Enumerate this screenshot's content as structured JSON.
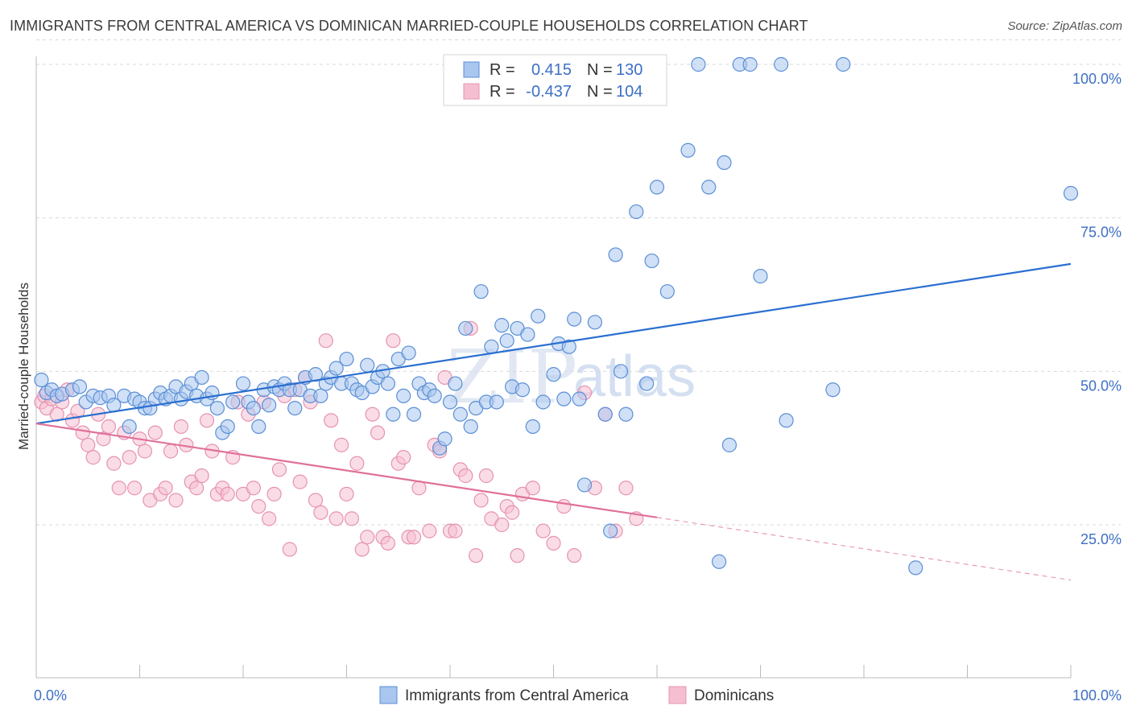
{
  "title": "IMMIGRANTS FROM CENTRAL AMERICA VS DOMINICAN MARRIED-COUPLE HOUSEHOLDS CORRELATION CHART",
  "source": "Source: ZipAtlas.com",
  "watermark": {
    "zip": "ZIP",
    "atlas": "atlas"
  },
  "colors": {
    "blue_fill": "#a9c6ef",
    "blue_stroke": "#5b8fd6",
    "blue_line": "#2a6fd0",
    "pink_fill": "#f6bfd1",
    "pink_stroke": "#e693b0",
    "pink_line": "#e0709a",
    "grid": "#d9d9d9",
    "axis_label": "#3d6fc4"
  },
  "legend": {
    "rows": [
      {
        "r_label": "R =",
        "r_value": "0.415",
        "n_label": "N =",
        "n_value": "130"
      },
      {
        "r_label": "R =",
        "r_value": "-0.437",
        "n_label": "N =",
        "n_value": "104"
      }
    ]
  },
  "chart_data": {
    "type": "scatter",
    "title": "IMMIGRANTS FROM CENTRAL AMERICA VS DOMINICAN MARRIED-COUPLE HOUSEHOLDS CORRELATION CHART",
    "xlabel": "",
    "ylabel": "Married-couple Households",
    "xlim": [
      0,
      100
    ],
    "ylim": [
      0,
      104
    ],
    "x_tick_labels": [
      "0.0%",
      "100.0%"
    ],
    "y_ticks": [
      25,
      50,
      75,
      100
    ],
    "y_tick_labels": [
      "25.0%",
      "50.0%",
      "75.0%",
      "100.0%"
    ],
    "grid": true,
    "series": [
      {
        "name": "Immigrants from Central America",
        "color": "blue",
        "r": 0.415,
        "n": 130,
        "trend": {
          "x0": 0,
          "y0": 41.5,
          "x1": 100,
          "y1": 67.5,
          "dashed_from": null
        },
        "points": [
          [
            0.5,
            48.6
          ],
          [
            1,
            46.5
          ],
          [
            1.5,
            47
          ],
          [
            2,
            46
          ],
          [
            2.5,
            46.3
          ],
          [
            3.5,
            47
          ],
          [
            4.2,
            47.5
          ],
          [
            4.8,
            45
          ],
          [
            5.5,
            46
          ],
          [
            6.2,
            45.7
          ],
          [
            7,
            46
          ],
          [
            7.5,
            44.5
          ],
          [
            8.5,
            46
          ],
          [
            9,
            41
          ],
          [
            9.5,
            45.5
          ],
          [
            10,
            45
          ],
          [
            10.5,
            44
          ],
          [
            11,
            44
          ],
          [
            11.5,
            45.5
          ],
          [
            12,
            46.5
          ],
          [
            12.5,
            45.5
          ],
          [
            13,
            46
          ],
          [
            13.5,
            47.5
          ],
          [
            14,
            45.5
          ],
          [
            14.5,
            46.7
          ],
          [
            15,
            48
          ],
          [
            15.5,
            46
          ],
          [
            16,
            49
          ],
          [
            16.5,
            45.5
          ],
          [
            17,
            46.5
          ],
          [
            17.5,
            44
          ],
          [
            18,
            40
          ],
          [
            18.5,
            41
          ],
          [
            19,
            45
          ],
          [
            20,
            48
          ],
          [
            20.5,
            45
          ],
          [
            21,
            44
          ],
          [
            21.5,
            41
          ],
          [
            22,
            47
          ],
          [
            22.5,
            44.5
          ],
          [
            23,
            47.5
          ],
          [
            23.5,
            47
          ],
          [
            24,
            48
          ],
          [
            24.5,
            47
          ],
          [
            25,
            44
          ],
          [
            25.5,
            47
          ],
          [
            26,
            49
          ],
          [
            26.5,
            46
          ],
          [
            27,
            49.5
          ],
          [
            27.5,
            46
          ],
          [
            28,
            48
          ],
          [
            28.5,
            49
          ],
          [
            29,
            50.5
          ],
          [
            29.5,
            48
          ],
          [
            30,
            52
          ],
          [
            30.5,
            48
          ],
          [
            31,
            47
          ],
          [
            31.5,
            46.5
          ],
          [
            32,
            51
          ],
          [
            32.5,
            47.5
          ],
          [
            33,
            49
          ],
          [
            33.5,
            50
          ],
          [
            34,
            48
          ],
          [
            34.5,
            43
          ],
          [
            35,
            52
          ],
          [
            35.5,
            46
          ],
          [
            36,
            53
          ],
          [
            36.5,
            43
          ],
          [
            37,
            48
          ],
          [
            37.5,
            46.5
          ],
          [
            38,
            47
          ],
          [
            38.5,
            46
          ],
          [
            39,
            37.5
          ],
          [
            39.5,
            39
          ],
          [
            40,
            45
          ],
          [
            40.5,
            48
          ],
          [
            41,
            43
          ],
          [
            41.5,
            57
          ],
          [
            42,
            41
          ],
          [
            42.5,
            44
          ],
          [
            43,
            63
          ],
          [
            43.5,
            45
          ],
          [
            44,
            54
          ],
          [
            44.5,
            45
          ],
          [
            45,
            57.5
          ],
          [
            45.5,
            55
          ],
          [
            46,
            47.5
          ],
          [
            46.5,
            57
          ],
          [
            47,
            47
          ],
          [
            47.5,
            56
          ],
          [
            48,
            41
          ],
          [
            48.5,
            59
          ],
          [
            49,
            45
          ],
          [
            50,
            49.5
          ],
          [
            50.5,
            54.5
          ],
          [
            51,
            45.5
          ],
          [
            51.5,
            54
          ],
          [
            52,
            58.5
          ],
          [
            52.5,
            45.5
          ],
          [
            53,
            31.5
          ],
          [
            54,
            58
          ],
          [
            55,
            43
          ],
          [
            55.5,
            24
          ],
          [
            56,
            69
          ],
          [
            56.5,
            50
          ],
          [
            57,
            43
          ],
          [
            58,
            76
          ],
          [
            59,
            48
          ],
          [
            59.5,
            68
          ],
          [
            60,
            80
          ],
          [
            61,
            63
          ],
          [
            63,
            86
          ],
          [
            64,
            100
          ],
          [
            65,
            80
          ],
          [
            66,
            19
          ],
          [
            66.5,
            84
          ],
          [
            67,
            38
          ],
          [
            68,
            100
          ],
          [
            69,
            100
          ],
          [
            70,
            65.5
          ],
          [
            72,
            100
          ],
          [
            72.5,
            42
          ],
          [
            77,
            47
          ],
          [
            78,
            100
          ],
          [
            85,
            18
          ],
          [
            100,
            79
          ]
        ]
      },
      {
        "name": "Dominicans",
        "color": "pink",
        "r": -0.437,
        "n": 104,
        "trend": {
          "x0": 0,
          "y0": 41.5,
          "x1": 100,
          "y1": 16,
          "dashed_from": 60
        },
        "points": [
          [
            0.5,
            45
          ],
          [
            0.8,
            46
          ],
          [
            1,
            44
          ],
          [
            1.5,
            45.5
          ],
          [
            2,
            43
          ],
          [
            2.5,
            45
          ],
          [
            3,
            47
          ],
          [
            3.5,
            42
          ],
          [
            4,
            43.5
          ],
          [
            4.5,
            40
          ],
          [
            5,
            38
          ],
          [
            5.5,
            36
          ],
          [
            6,
            43
          ],
          [
            6.5,
            39
          ],
          [
            7,
            41
          ],
          [
            7.5,
            35
          ],
          [
            8,
            31
          ],
          [
            8.5,
            40
          ],
          [
            9,
            36
          ],
          [
            9.5,
            31
          ],
          [
            10,
            39
          ],
          [
            10.5,
            37
          ],
          [
            11,
            29
          ],
          [
            11.5,
            40
          ],
          [
            12,
            30
          ],
          [
            12.5,
            31
          ],
          [
            13,
            37
          ],
          [
            13.5,
            29
          ],
          [
            14,
            41
          ],
          [
            14.5,
            38
          ],
          [
            15,
            32
          ],
          [
            15.5,
            31
          ],
          [
            16,
            33
          ],
          [
            16.5,
            42
          ],
          [
            17,
            37
          ],
          [
            17.5,
            30
          ],
          [
            18,
            31
          ],
          [
            18.5,
            30
          ],
          [
            19,
            36
          ],
          [
            19.5,
            45
          ],
          [
            20,
            30
          ],
          [
            20.5,
            43
          ],
          [
            21,
            31
          ],
          [
            21.5,
            28
          ],
          [
            22,
            45
          ],
          [
            22.5,
            26
          ],
          [
            23,
            30
          ],
          [
            23.5,
            34
          ],
          [
            24,
            46
          ],
          [
            24.5,
            21
          ],
          [
            25,
            47
          ],
          [
            25.5,
            32
          ],
          [
            26,
            49
          ],
          [
            26.5,
            45
          ],
          [
            27,
            29
          ],
          [
            27.5,
            27
          ],
          [
            28,
            55
          ],
          [
            28.5,
            42
          ],
          [
            29,
            26
          ],
          [
            29.5,
            38
          ],
          [
            30,
            30
          ],
          [
            30.5,
            26
          ],
          [
            31,
            35
          ],
          [
            31.5,
            21
          ],
          [
            32,
            23
          ],
          [
            32.5,
            43
          ],
          [
            33,
            40
          ],
          [
            33.5,
            23
          ],
          [
            34,
            22
          ],
          [
            34.5,
            55
          ],
          [
            35,
            35
          ],
          [
            35.5,
            36
          ],
          [
            36,
            23
          ],
          [
            36.5,
            23
          ],
          [
            37,
            31
          ],
          [
            38,
            24
          ],
          [
            38.5,
            38
          ],
          [
            39,
            37
          ],
          [
            39.5,
            49
          ],
          [
            40,
            24
          ],
          [
            40.5,
            24
          ],
          [
            41,
            34
          ],
          [
            41.5,
            33
          ],
          [
            42,
            57
          ],
          [
            42.5,
            20
          ],
          [
            43,
            29
          ],
          [
            43.5,
            33
          ],
          [
            44,
            26
          ],
          [
            45,
            25
          ],
          [
            45.5,
            28
          ],
          [
            46,
            27
          ],
          [
            46.5,
            20
          ],
          [
            47,
            30
          ],
          [
            48,
            31
          ],
          [
            49,
            24
          ],
          [
            50,
            22
          ],
          [
            51,
            28
          ],
          [
            52,
            20
          ],
          [
            53,
            46.5
          ],
          [
            54,
            31
          ],
          [
            55,
            43
          ],
          [
            56,
            24
          ],
          [
            57,
            31
          ],
          [
            58,
            26
          ]
        ]
      }
    ]
  },
  "bottom_legend": {
    "items": [
      {
        "label": "Immigrants from Central America"
      },
      {
        "label": "Dominicans"
      }
    ]
  }
}
